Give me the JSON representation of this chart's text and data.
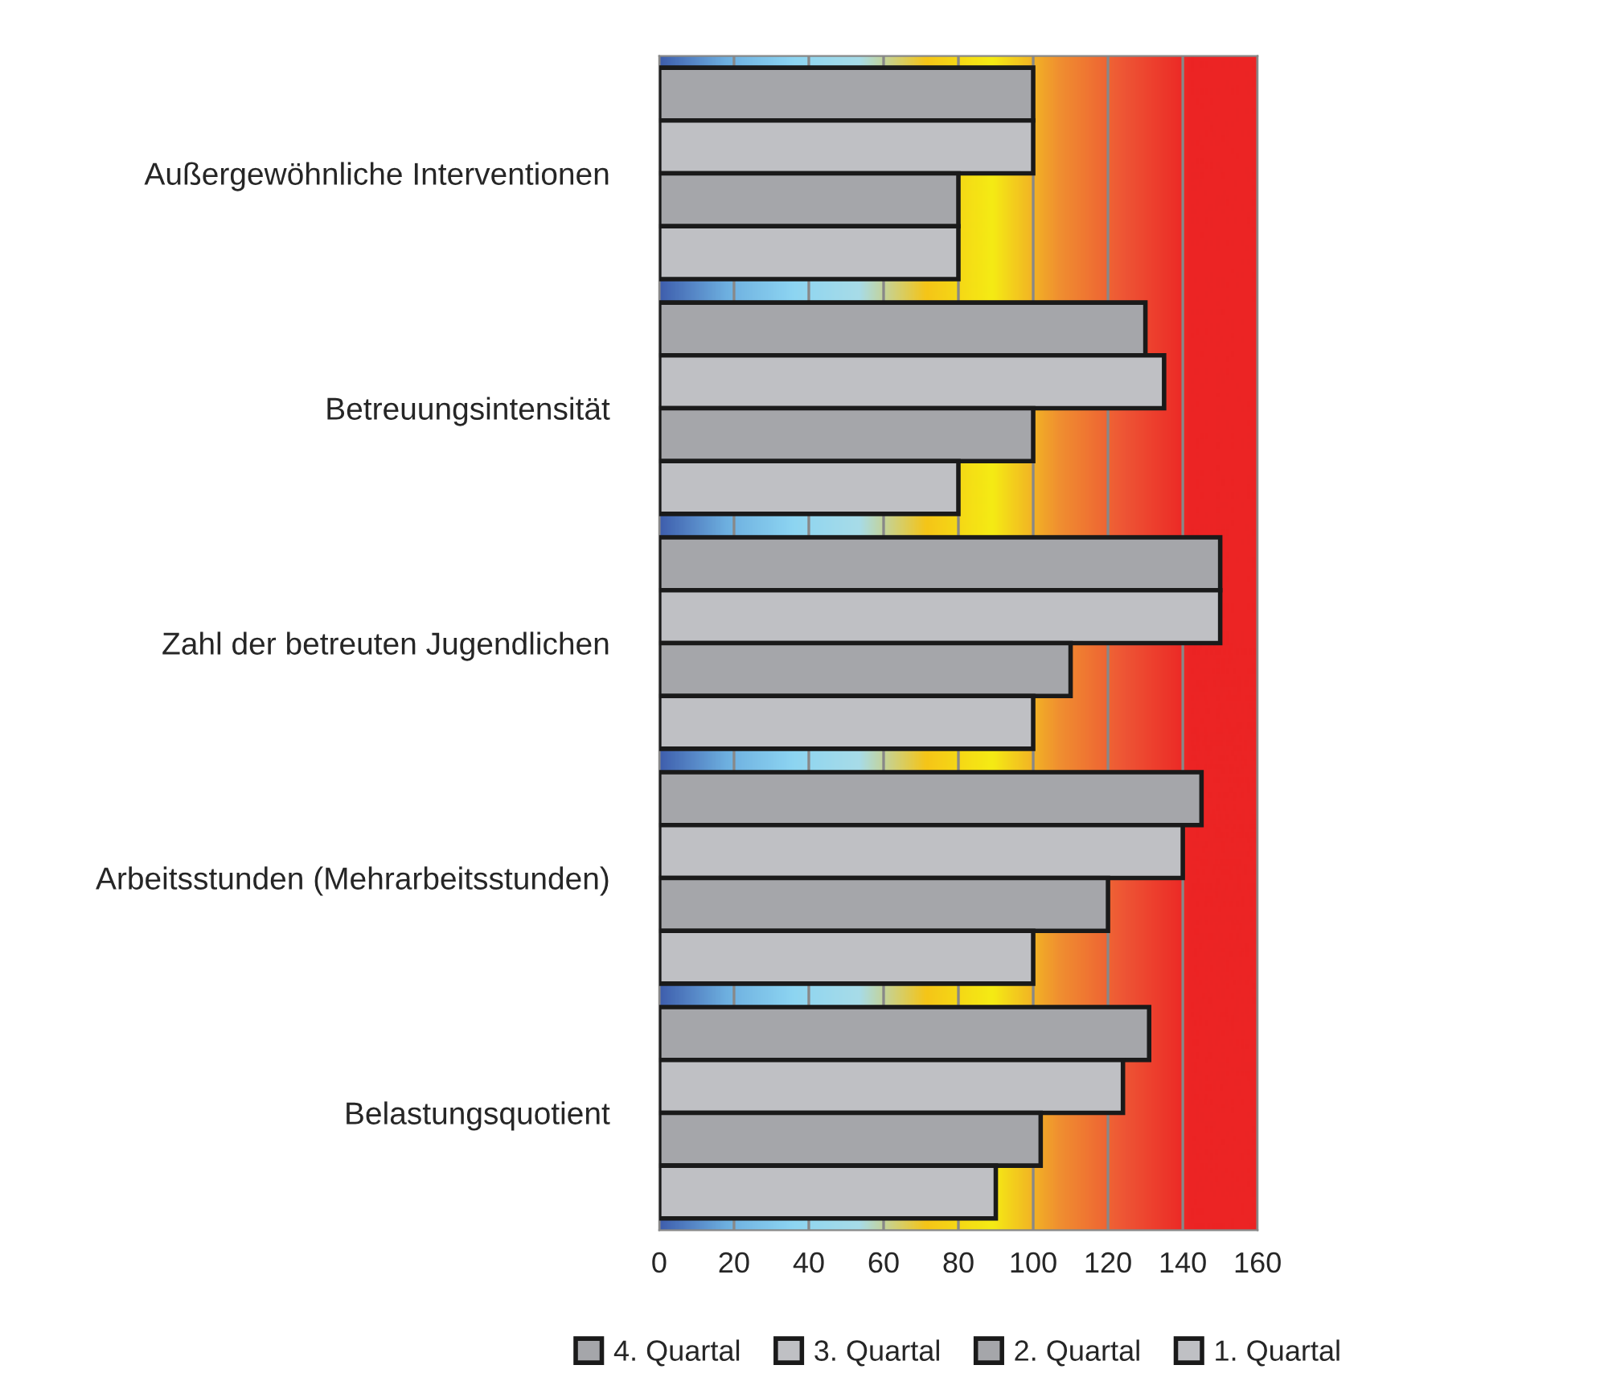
{
  "chart_data": {
    "type": "bar",
    "orientation": "horizontal",
    "categories": [
      "Außergewöhnliche Interventionen",
      "Betreuungsintensität",
      "Zahl der betreuten Jugendlichen",
      "Arbeitsstunden (Mehrarbeitsstunden)",
      "Belastungsquotient"
    ],
    "series": [
      {
        "name": "4. Quartal",
        "color": "#a5a6aa",
        "values": [
          100,
          130,
          150,
          145,
          131
        ]
      },
      {
        "name": "3. Quartal",
        "color": "#bfc0c4",
        "values": [
          100,
          135,
          150,
          140,
          124
        ]
      },
      {
        "name": "2. Quartal",
        "color": "#a5a6aa",
        "values": [
          80,
          100,
          110,
          120,
          102
        ]
      },
      {
        "name": "1. Quartal",
        "color": "#bfc0c4",
        "values": [
          80,
          80,
          100,
          100,
          90
        ]
      }
    ],
    "xlim": [
      0,
      160
    ],
    "xticks": [
      0,
      20,
      40,
      60,
      80,
      100,
      120,
      140,
      160
    ],
    "grid": "x",
    "legend": "bottom"
  }
}
